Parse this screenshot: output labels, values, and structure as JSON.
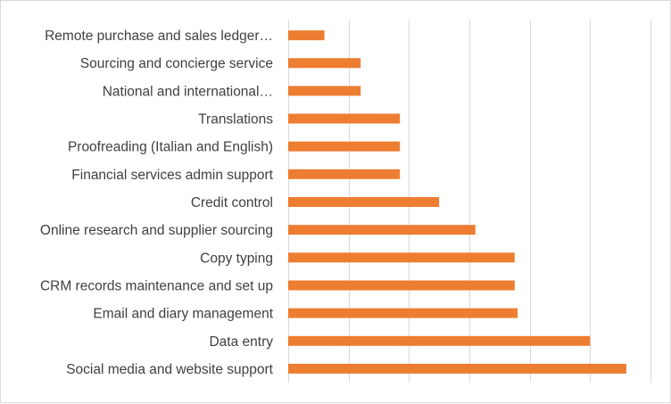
{
  "chart_data": {
    "type": "bar",
    "orientation": "horizontal",
    "categories": [
      "Remote purchase and sales ledger…",
      "Sourcing and concierge service",
      "National and international…",
      "Translations",
      "Proofreading (Italian and English)",
      "Financial services admin support",
      "Credit control",
      "Online research and supplier sourcing",
      "Copy typing",
      "CRM records maintenance and set up",
      "Email and diary management",
      "Data entry",
      "Social media and website support"
    ],
    "values": [
      0.6,
      1.2,
      1.2,
      1.85,
      1.85,
      1.85,
      2.5,
      3.1,
      3.75,
      3.75,
      3.8,
      5.0,
      5.6
    ],
    "xlim": [
      0,
      6
    ],
    "grid": true,
    "legend": "none",
    "bar_color": "#ed7d31",
    "grid_color": "#d9d9d9",
    "title": "",
    "xlabel": "",
    "ylabel": ""
  }
}
